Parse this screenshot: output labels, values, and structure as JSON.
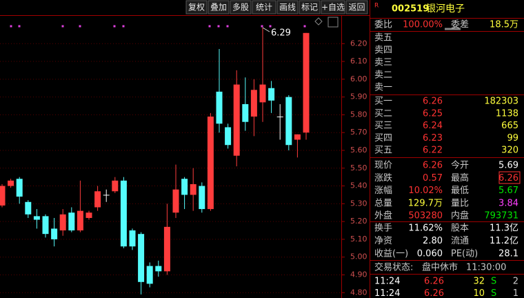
{
  "toolbar": [
    "复权",
    "叠加",
    "多股",
    "统计",
    "画线",
    "标记",
    "+自选",
    "返回"
  ],
  "stock": {
    "marker": "R",
    "code": "002519",
    "name": "银河电子"
  },
  "order_ratio": [
    "委比",
    "100.00%",
    "委差",
    "18.5万"
  ],
  "asks": [
    "卖五",
    "卖四",
    "卖三",
    "卖二",
    "卖一"
  ],
  "bids": [
    [
      "买一",
      "6.26",
      "182303"
    ],
    [
      "买二",
      "6.25",
      "1138"
    ],
    [
      "买三",
      "6.24",
      "665"
    ],
    [
      "买四",
      "6.23",
      "99"
    ],
    [
      "买五",
      "6.22",
      "320"
    ]
  ],
  "quote": [
    [
      "现价",
      "6.26",
      "今开",
      "5.69"
    ],
    [
      "涨跌",
      "0.57",
      "最高",
      "6.26"
    ],
    [
      "涨幅",
      "10.02%",
      "最低",
      "5.67"
    ],
    [
      "总量",
      "129.7万",
      "量比",
      "3.84"
    ],
    [
      "外盘",
      "503280",
      "内盘",
      "793731"
    ]
  ],
  "finance": [
    [
      "换手",
      "11.62%",
      "股本",
      "11.3亿"
    ],
    [
      "净资",
      "2.80",
      "流通",
      "11.2亿"
    ],
    [
      "收益(一)",
      "0.060",
      "PE(动)",
      "28.1"
    ]
  ],
  "status": [
    "交易状态:",
    "盘中休市",
    "11:30:00"
  ],
  "trades": [
    [
      "11:24",
      "6.26",
      "32",
      "S",
      "2"
    ],
    [
      "11:24",
      "6.26",
      "10",
      "S",
      "1"
    ]
  ],
  "chart": {
    "type": "candlestick",
    "ylim": [
      4.77,
      6.36
    ],
    "yticks": [
      {
        "value": 6.2,
        "label": "6.20"
      },
      {
        "value": 6.1,
        "label": "6.10"
      },
      {
        "value": 6.0,
        "label": "6.00"
      },
      {
        "value": 5.9,
        "label": "5.90"
      },
      {
        "value": 5.8,
        "label": "5.80"
      },
      {
        "value": 5.7,
        "label": "5.70"
      },
      {
        "value": 5.6,
        "label": "5.60"
      },
      {
        "value": 5.5,
        "label": "5.50"
      },
      {
        "value": 5.4,
        "label": "5.40"
      },
      {
        "value": 5.3,
        "label": "5.30"
      },
      {
        "value": 5.2,
        "label": "5.20"
      },
      {
        "value": 5.1,
        "label": "5.10"
      },
      {
        "value": 5.0,
        "label": "5.00"
      },
      {
        "value": 4.9,
        "label": "4.90"
      },
      {
        "value": 4.8,
        "label": "4.80"
      }
    ],
    "grid": true,
    "peak_label": "6.29",
    "candles": [
      {
        "open": 5.29,
        "high": 5.41,
        "low": 5.28,
        "close": 5.4
      },
      {
        "open": 5.4,
        "high": 5.44,
        "low": 5.39,
        "close": 5.43
      },
      {
        "open": 5.44,
        "high": 5.45,
        "low": 5.3,
        "close": 5.34
      },
      {
        "open": 5.31,
        "high": 5.32,
        "low": 5.22,
        "close": 5.24
      },
      {
        "open": 5.23,
        "high": 5.27,
        "low": 5.16,
        "close": 5.21
      },
      {
        "open": 5.23,
        "high": 5.24,
        "low": 5.11,
        "close": 5.13
      },
      {
        "open": 5.16,
        "high": 5.22,
        "low": 5.06,
        "close": 5.1
      },
      {
        "open": 5.15,
        "high": 5.27,
        "low": 5.12,
        "close": 5.24
      },
      {
        "open": 5.25,
        "high": 5.28,
        "low": 5.14,
        "close": 5.15
      },
      {
        "open": 5.15,
        "high": 5.43,
        "low": 5.14,
        "close": 5.26
      },
      {
        "open": 5.22,
        "high": 5.26,
        "low": 5.21,
        "close": 5.25
      },
      {
        "open": 5.28,
        "high": 5.4,
        "low": 5.26,
        "close": 5.37
      },
      {
        "open": 5.35,
        "high": 5.38,
        "low": 5.31,
        "close": 5.35
      },
      {
        "open": 5.37,
        "high": 5.45,
        "low": 5.36,
        "close": 5.43
      },
      {
        "open": 5.43,
        "high": 5.45,
        "low": 5.05,
        "close": 5.06
      },
      {
        "open": 5.15,
        "high": 5.16,
        "low": 5.04,
        "close": 5.06
      },
      {
        "open": 5.13,
        "high": 5.14,
        "low": 4.79,
        "close": 4.86
      },
      {
        "open": 4.95,
        "high": 4.97,
        "low": 4.83,
        "close": 4.85
      },
      {
        "open": 4.95,
        "high": 4.98,
        "low": 4.89,
        "close": 4.92
      },
      {
        "open": 4.92,
        "high": 5.3,
        "low": 4.9,
        "close": 5.17
      },
      {
        "open": 5.25,
        "high": 5.52,
        "low": 5.22,
        "close": 5.38
      },
      {
        "open": 5.44,
        "high": 5.45,
        "low": 5.27,
        "close": 5.35
      },
      {
        "open": 5.35,
        "high": 5.5,
        "low": 5.26,
        "close": 5.41
      },
      {
        "open": 5.4,
        "high": 5.42,
        "low": 5.25,
        "close": 5.27
      },
      {
        "open": 5.27,
        "high": 5.81,
        "low": 5.26,
        "close": 5.79
      },
      {
        "open": 5.93,
        "high": 6.17,
        "low": 5.7,
        "close": 5.75
      },
      {
        "open": 5.73,
        "high": 5.75,
        "low": 5.61,
        "close": 5.63
      },
      {
        "open": 5.57,
        "high": 6.05,
        "low": 5.51,
        "close": 5.97
      },
      {
        "open": 5.86,
        "high": 6.01,
        "low": 5.71,
        "close": 5.76
      },
      {
        "open": 5.79,
        "high": 6.0,
        "low": 5.68,
        "close": 5.94
      },
      {
        "open": 5.87,
        "high": 6.29,
        "low": 5.76,
        "close": 5.97
      },
      {
        "open": 5.95,
        "high": 5.99,
        "low": 5.81,
        "close": 5.88
      },
      {
        "open": 5.79,
        "high": 5.86,
        "low": 5.66,
        "close": 5.79
      },
      {
        "open": 5.9,
        "high": 5.91,
        "low": 5.6,
        "close": 5.63
      },
      {
        "open": 5.66,
        "high": 5.69,
        "low": 5.56,
        "close": 5.69
      },
      {
        "open": 5.7,
        "high": 6.26,
        "low": 5.66,
        "close": 6.26
      }
    ]
  }
}
